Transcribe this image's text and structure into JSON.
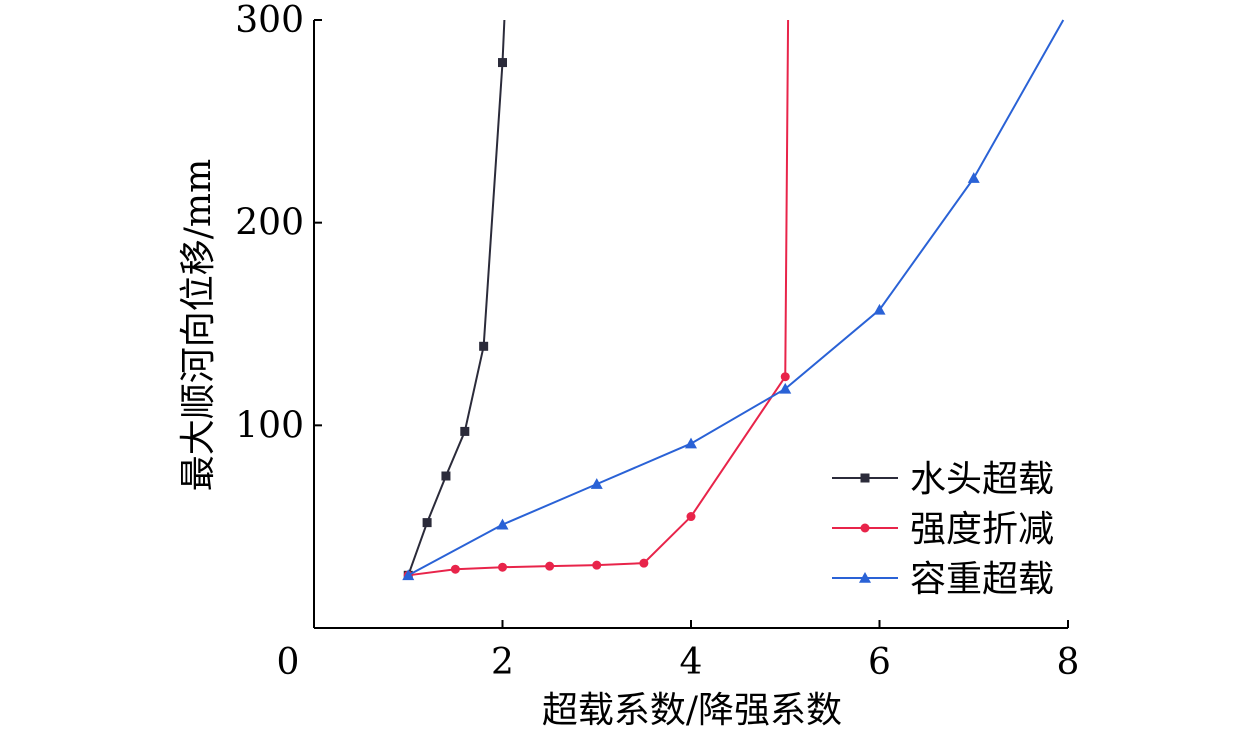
{
  "chart_data": {
    "type": "line",
    "title": "",
    "xlabel": "超载系数/降强系数",
    "ylabel": "最大顺河向位移/mm",
    "xlim": [
      0,
      8
    ],
    "ylim": [
      0,
      300
    ],
    "xticks": [
      0,
      2,
      4,
      6,
      8
    ],
    "yticks": [
      100,
      200,
      300
    ],
    "grid": false,
    "legend_position": "right",
    "series": [
      {
        "name": "水头超载",
        "color": "#2b2b3a",
        "marker": "square",
        "points": [
          [
            1.0,
            26
          ],
          [
            1.2,
            52
          ],
          [
            1.4,
            75
          ],
          [
            1.6,
            97
          ],
          [
            1.8,
            139
          ],
          [
            2.0,
            279
          ],
          [
            2.02,
            300
          ]
        ]
      },
      {
        "name": "强度折减",
        "color": "#e8244a",
        "marker": "circle",
        "points": [
          [
            1.0,
            26
          ],
          [
            1.5,
            29
          ],
          [
            2.0,
            30
          ],
          [
            2.5,
            30.5
          ],
          [
            3.0,
            31
          ],
          [
            3.5,
            32
          ],
          [
            4.0,
            55
          ],
          [
            5.0,
            124
          ],
          [
            5.03,
            300
          ]
        ]
      },
      {
        "name": "容重超载",
        "color": "#2a62d6",
        "marker": "triangle",
        "points": [
          [
            1.0,
            26
          ],
          [
            2.0,
            51
          ],
          [
            3.0,
            71
          ],
          [
            4.0,
            91
          ],
          [
            5.0,
            118
          ],
          [
            6.0,
            157
          ],
          [
            7.0,
            222
          ],
          [
            7.95,
            300
          ]
        ]
      }
    ]
  }
}
